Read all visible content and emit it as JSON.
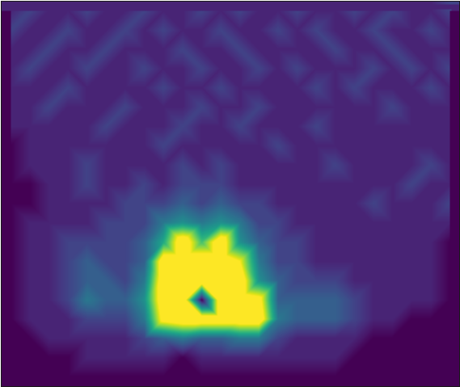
{
  "chart_data": {
    "type": "heatmap",
    "tick_labels": false,
    "x": [
      0,
      1,
      2,
      3,
      4,
      5,
      6,
      7,
      8,
      9,
      10,
      11,
      12,
      13,
      14,
      15,
      16,
      17,
      18,
      19,
      20,
      21,
      22,
      23
    ],
    "y": [
      19,
      18,
      17,
      16,
      15,
      14,
      13,
      12,
      11,
      10,
      9,
      8,
      7,
      6,
      5,
      4,
      3,
      2,
      1,
      0
    ],
    "xlim": [
      -0.5,
      23.5
    ],
    "ylim": [
      -0.5,
      19.5
    ],
    "zlim": [
      0,
      10
    ],
    "cells": [
      [
        1,
        2,
        1,
        1,
        2,
        1,
        1,
        2,
        1,
        1,
        2,
        1,
        2,
        1,
        1,
        2,
        1,
        1,
        2,
        1,
        2,
        1,
        1,
        2
      ],
      [
        2,
        1,
        1,
        2,
        1,
        1,
        2,
        1,
        2,
        1,
        1,
        2,
        1,
        1,
        2,
        1,
        2,
        1,
        1,
        2,
        1,
        1,
        2,
        1
      ],
      [
        1,
        1,
        2,
        1,
        1,
        2,
        1,
        1,
        1,
        2,
        1,
        1,
        2,
        1,
        1,
        1,
        1,
        2,
        1,
        1,
        2,
        1,
        1,
        1
      ],
      [
        1,
        2,
        1,
        1,
        2,
        1,
        1,
        2,
        1,
        1,
        2,
        1,
        1,
        2,
        1,
        2,
        1,
        1,
        1,
        2,
        1,
        2,
        1,
        2
      ],
      [
        1,
        1,
        1,
        2,
        1,
        1,
        1,
        1,
        2,
        1,
        1,
        2,
        1,
        1,
        1,
        1,
        2,
        1,
        2,
        1,
        1,
        1,
        2,
        1
      ],
      [
        1,
        1,
        2,
        1,
        1,
        1,
        2,
        1,
        1,
        1,
        2,
        1,
        1,
        2,
        1,
        1,
        1,
        1,
        1,
        1,
        2,
        1,
        1,
        1
      ],
      [
        1,
        1,
        1,
        1,
        1,
        2,
        1,
        1,
        1,
        2,
        1,
        1,
        2,
        1,
        1,
        1,
        2,
        1,
        1,
        1,
        1,
        1,
        1,
        1
      ],
      [
        0,
        1,
        1,
        1,
        1,
        1,
        1,
        1,
        2,
        1,
        1,
        1,
        1,
        1,
        2,
        1,
        1,
        1,
        1,
        1,
        1,
        1,
        1,
        1
      ],
      [
        0,
        1,
        1,
        1,
        2,
        1,
        1,
        1,
        1,
        2,
        1,
        2,
        1,
        1,
        1,
        1,
        1,
        2,
        1,
        1,
        1,
        1,
        2,
        1
      ],
      [
        0,
        0,
        1,
        1,
        2,
        1,
        1,
        2,
        1,
        2,
        2,
        2,
        1,
        1,
        1,
        1,
        1,
        1,
        1,
        1,
        1,
        2,
        1,
        1
      ],
      [
        0,
        0,
        1,
        1,
        1,
        1,
        2,
        2,
        2,
        3,
        2,
        3,
        2,
        2,
        1,
        1,
        1,
        1,
        1,
        2,
        1,
        1,
        1,
        2
      ],
      [
        0,
        1,
        1,
        1,
        1,
        2,
        2,
        2,
        4,
        5,
        4,
        5,
        4,
        2,
        2,
        1,
        1,
        1,
        1,
        1,
        1,
        1,
        1,
        1
      ],
      [
        0,
        1,
        1,
        2,
        2,
        2,
        2,
        3,
        6,
        12,
        7,
        12,
        5,
        3,
        2,
        2,
        1,
        1,
        1,
        1,
        1,
        1,
        1,
        0
      ],
      [
        0,
        1,
        1,
        2,
        3,
        2,
        2,
        3,
        12,
        12,
        12,
        12,
        10,
        4,
        2,
        2,
        1,
        1,
        1,
        1,
        1,
        1,
        1,
        0
      ],
      [
        0,
        1,
        1,
        2,
        3,
        3,
        2,
        4,
        12,
        12,
        12,
        12,
        12,
        5,
        3,
        2,
        2,
        2,
        1,
        1,
        1,
        1,
        1,
        0
      ],
      [
        0,
        1,
        1,
        2,
        4,
        3,
        3,
        5,
        12,
        12,
        0,
        12,
        12,
        11,
        3,
        3,
        3,
        3,
        2,
        1,
        1,
        1,
        1,
        0
      ],
      [
        0,
        1,
        1,
        1,
        2,
        2,
        2,
        4,
        11,
        12,
        12,
        12,
        12,
        12,
        4,
        3,
        3,
        3,
        2,
        1,
        1,
        0,
        0,
        0
      ],
      [
        0,
        0,
        1,
        1,
        1,
        1,
        1,
        2,
        3,
        4,
        3,
        3,
        4,
        4,
        2,
        1,
        1,
        1,
        1,
        0,
        0,
        0,
        0,
        0
      ],
      [
        0,
        0,
        0,
        0,
        1,
        1,
        1,
        1,
        1,
        0,
        1,
        1,
        1,
        1,
        1,
        1,
        1,
        1,
        0,
        0,
        0,
        0,
        0,
        0
      ],
      [
        0,
        0,
        0,
        0,
        0,
        0,
        0,
        0,
        0,
        0,
        0,
        0,
        0,
        0,
        0,
        0,
        0,
        0,
        0,
        0,
        0,
        0,
        0,
        0
      ]
    ]
  }
}
